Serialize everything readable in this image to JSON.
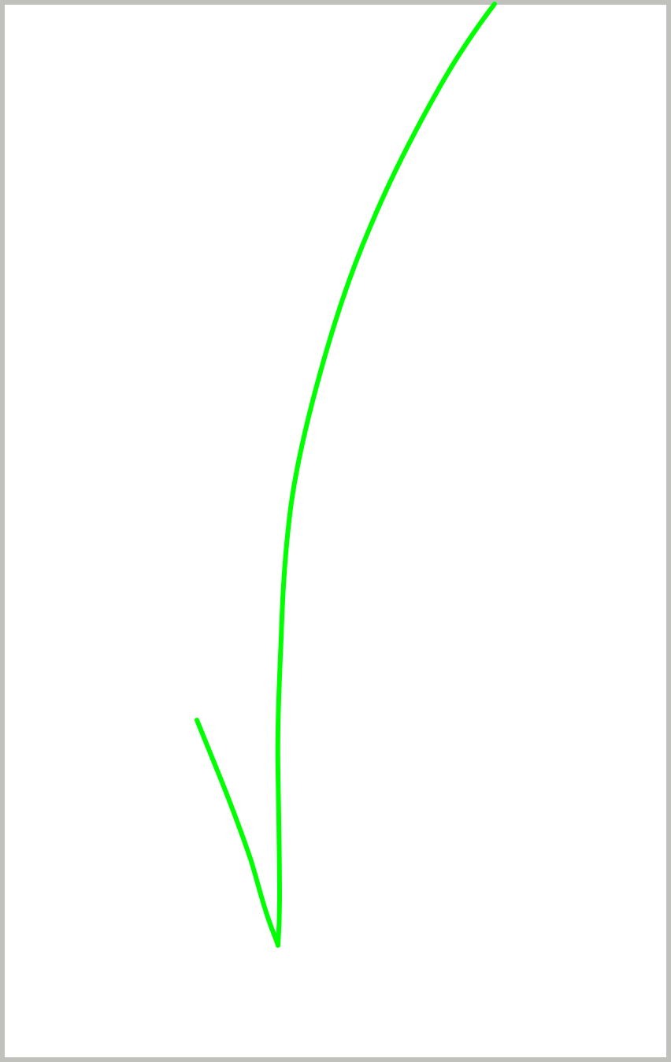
{
  "canvas": {
    "background_color": "#ffffff",
    "border_color": "#c0c0bc"
  },
  "stroke": {
    "shape": "hand-drawn downward arrow",
    "color": "#00ff00"
  }
}
